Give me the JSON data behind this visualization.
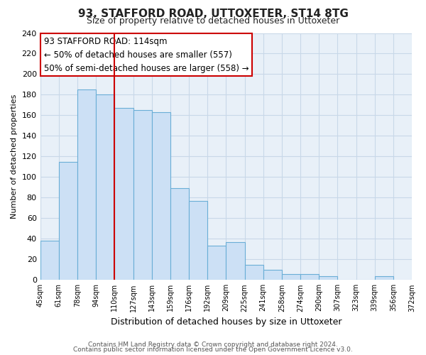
{
  "title": "93, STAFFORD ROAD, UTTOXETER, ST14 8TG",
  "subtitle": "Size of property relative to detached houses in Uttoxeter",
  "xlabel": "Distribution of detached houses by size in Uttoxeter",
  "ylabel": "Number of detached properties",
  "bar_values": [
    38,
    115,
    185,
    180,
    167,
    165,
    163,
    89,
    77,
    33,
    37,
    15,
    10,
    6,
    6,
    4,
    0,
    0,
    4
  ],
  "bin_labels": [
    "45sqm",
    "61sqm",
    "78sqm",
    "94sqm",
    "110sqm",
    "127sqm",
    "143sqm",
    "159sqm",
    "176sqm",
    "192sqm",
    "209sqm",
    "225sqm",
    "241sqm",
    "258sqm",
    "274sqm",
    "290sqm",
    "307sqm",
    "323sqm",
    "339sqm",
    "356sqm",
    "372sqm"
  ],
  "bar_color": "#cce0f5",
  "bar_edge_color": "#6aaed6",
  "bar_width": 1.0,
  "vline_x": 4,
  "vline_color": "#cc0000",
  "ylim": [
    0,
    240
  ],
  "yticks": [
    0,
    20,
    40,
    60,
    80,
    100,
    120,
    140,
    160,
    180,
    200,
    220,
    240
  ],
  "annotation_title": "93 STAFFORD ROAD: 114sqm",
  "annotation_line1": "← 50% of detached houses are smaller (557)",
  "annotation_line2": "50% of semi-detached houses are larger (558) →",
  "annotation_box_color": "#ffffff",
  "annotation_box_edge": "#cc0000",
  "footer1": "Contains HM Land Registry data © Crown copyright and database right 2024.",
  "footer2": "Contains public sector information licensed under the Open Government Licence v3.0.",
  "grid_color": "#c8d8e8",
  "fig_bg_color": "#ffffff",
  "plot_bg_color": "#e8f0f8"
}
